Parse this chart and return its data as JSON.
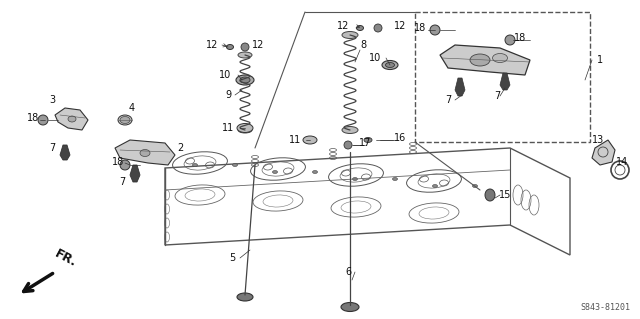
{
  "bg_color": "#ffffff",
  "diagram_code": "S843-81201",
  "line_color": "#333333",
  "label_fontsize": 7,
  "figsize": [
    6.4,
    3.19
  ],
  "dpi": 100
}
